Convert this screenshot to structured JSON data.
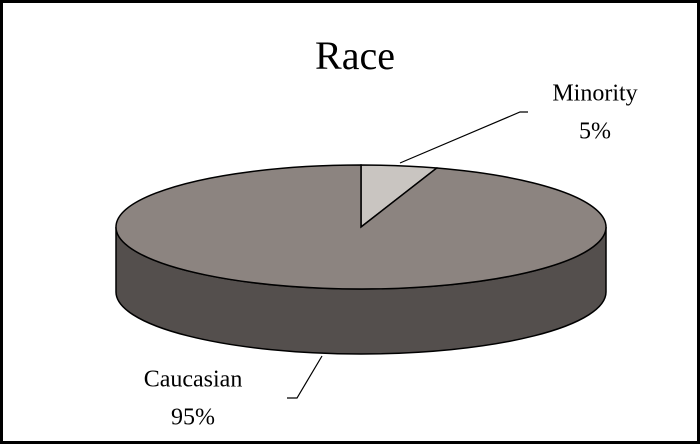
{
  "chart_data": {
    "type": "pie",
    "title": "Race",
    "categories": [
      "Minority",
      "Caucasian"
    ],
    "values": [
      5,
      95
    ],
    "value_labels": [
      "5%",
      "95%"
    ],
    "colors": [
      "#c9c5c1",
      "#8c8480"
    ]
  }
}
